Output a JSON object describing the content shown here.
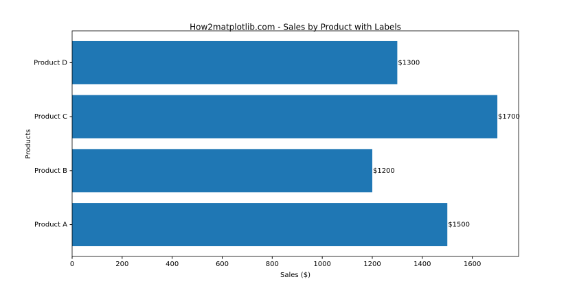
{
  "chart_data": {
    "type": "barh",
    "title": "How2matplotlib.com - Sales by Product with Labels",
    "xlabel": "Sales ($)",
    "ylabel": "Products",
    "categories": [
      "Product A",
      "Product B",
      "Product C",
      "Product D"
    ],
    "values": [
      1500,
      1200,
      1700,
      1300
    ],
    "value_labels": [
      "$1500",
      "$1200",
      "$1700",
      "$1300"
    ],
    "color": "#1f77b4",
    "xlim": [
      0,
      1785
    ],
    "xticks": [
      0,
      200,
      400,
      600,
      800,
      1000,
      1200,
      1400,
      1600
    ]
  }
}
